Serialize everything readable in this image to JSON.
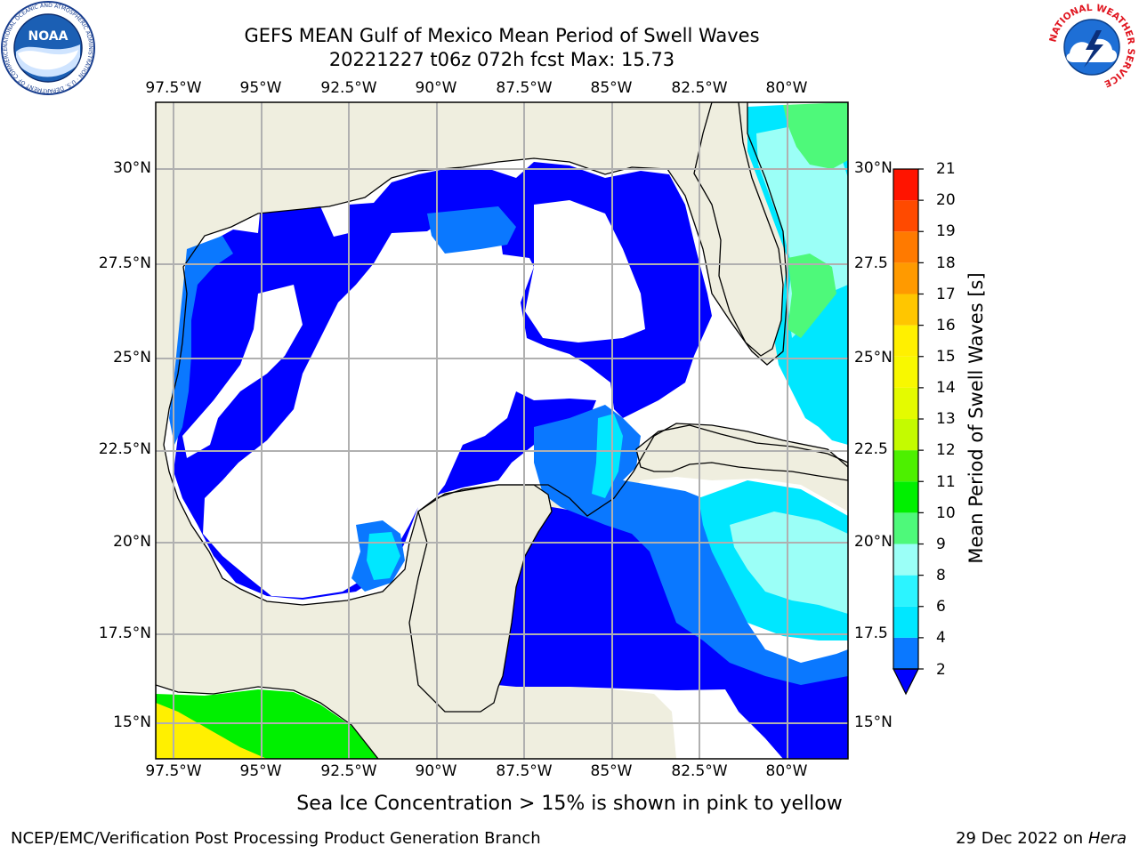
{
  "title_line1": "GEFS MEAN Gulf of Mexico Mean Period of Swell Waves",
  "title_line2": "20221227 t06z 072h fcst   Max: 15.73",
  "lon_ticks": [
    "97.5°W",
    "95°W",
    "92.5°W",
    "90°W",
    "87.5°W",
    "85°W",
    "82.5°W",
    "80°W"
  ],
  "lat_ticks_left": [
    "30°N",
    "27.5°N",
    "25°N",
    "22.5°N",
    "20°N",
    "17.5°N",
    "15°N"
  ],
  "lat_ticks_right": [
    "30°N",
    "27.5",
    "25°N",
    "22.5",
    "20°N",
    "17.5",
    "15°N"
  ],
  "colorbar": {
    "label": "Mean Period of Swell Waves [s]",
    "ticks": [
      "21",
      "20",
      "19",
      "18",
      "17",
      "16",
      "15",
      "14",
      "13",
      "12",
      "11",
      "10",
      "9",
      "8",
      "6",
      "4",
      "2"
    ],
    "bands": [
      {
        "from": 2,
        "to": 4,
        "color": "#0a78ff"
      },
      {
        "from": 4,
        "to": 6,
        "color": "#00e7ff"
      },
      {
        "from": 6,
        "to": 8,
        "color": "#2cf4ff"
      },
      {
        "from": 8,
        "to": 9,
        "color": "#9bfff7"
      },
      {
        "from": 9,
        "to": 10,
        "color": "#4ef97a"
      },
      {
        "from": 10,
        "to": 11,
        "color": "#00f000"
      },
      {
        "from": 11,
        "to": 12,
        "color": "#4df000"
      },
      {
        "from": 12,
        "to": 13,
        "color": "#c4fb00"
      },
      {
        "from": 13,
        "to": 14,
        "color": "#e4fb00"
      },
      {
        "from": 14,
        "to": 15,
        "color": "#f8f800"
      },
      {
        "from": 15,
        "to": 16,
        "color": "#fff000"
      },
      {
        "from": 16,
        "to": 17,
        "color": "#ffc600"
      },
      {
        "from": 17,
        "to": 18,
        "color": "#ff9a00"
      },
      {
        "from": 18,
        "to": 19,
        "color": "#ff7a00"
      },
      {
        "from": 19,
        "to": 20,
        "color": "#ff4a00"
      },
      {
        "from": 20,
        "to": 21,
        "color": "#ff1400"
      }
    ],
    "extend_color": "#0000ff"
  },
  "colors": {
    "land": "#efeedf",
    "ocean_low": "#0000ff",
    "ocean_mid": "#0a78ff",
    "ocean_cyan": "#00e7ff",
    "ocean_light": "#9bfff7",
    "swell_green": "#4ef97a",
    "swell_bright_green": "#00f000",
    "swell_yellow": "#fff000",
    "grid": "#b0b0b0"
  },
  "caption": "Sea Ice Concentration > 15% is shown in pink to yellow",
  "footer_left": "NCEP/EMC/Verification Post Processing Product Generation Branch",
  "footer_right_date": "29 Dec 2022 on",
  "footer_right_host": "Hera",
  "noaa_logo": {
    "text": "NOAA",
    "ring_text": "NATIONAL OCEANIC AND ATMOSPHERIC ADMINISTRATION · U.S. DEPARTMENT OF COMMERCE"
  },
  "nws_logo": {
    "ring_text": "NATIONAL WEATHER SERVICE"
  }
}
